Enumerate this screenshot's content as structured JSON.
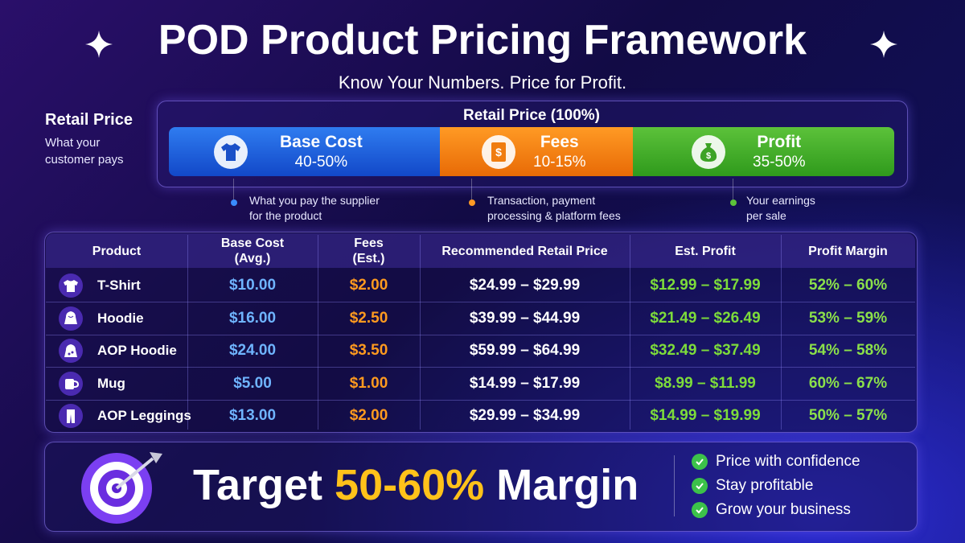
{
  "header": {
    "title": "POD Product Pricing Framework",
    "subtitle": "Know Your Numbers. Price for Profit."
  },
  "breakdown": {
    "label": "Retail Price",
    "label_note": "What your\ncustomer pays",
    "bar_title": "Retail Price (100%)",
    "segments": [
      {
        "name": "Base Cost",
        "range": "40-50%",
        "note": "What you pay the supplier\nfor the product"
      },
      {
        "name": "Fees",
        "range": "10-15%",
        "note": "Transaction, payment\nprocessing & platform fees"
      },
      {
        "name": "Profit",
        "range": "35-50%",
        "note": "Your earnings\nper sale"
      }
    ]
  },
  "table": {
    "headers": [
      "Product",
      "Base Cost\n(Avg.)",
      "Fees\n(Est.)",
      "Recommended Retail Price",
      "Est. Profit",
      "Profit Margin"
    ],
    "rows": [
      [
        "T-Shirt",
        "$10.00",
        "$2.00",
        "$24.99 – $29.99",
        "$12.99 – $17.99",
        "52% – 60%"
      ],
      [
        "Hoodie",
        "$16.00",
        "$2.50",
        "$39.99 – $44.99",
        "$21.49 – $26.49",
        "53% – 59%"
      ],
      [
        "AOP Hoodie",
        "$24.00",
        "$3.50",
        "$59.99 – $64.99",
        "$32.49 – $37.49",
        "54% – 58%"
      ],
      [
        "Mug",
        "$5.00",
        "$1.00",
        "$14.99 – $17.99",
        "$8.99 – $11.99",
        "60% – 67%"
      ],
      [
        "AOP Leggings",
        "$13.00",
        "$2.00",
        "$29.99 – $34.99",
        "$14.99 – $19.99",
        "50% – 57%"
      ]
    ]
  },
  "footer": {
    "prefix": "Target",
    "highlight": "50-60%",
    "suffix": "Margin",
    "checklist": [
      "Price with confidence",
      "Stay profitable",
      "Grow your business"
    ]
  }
}
